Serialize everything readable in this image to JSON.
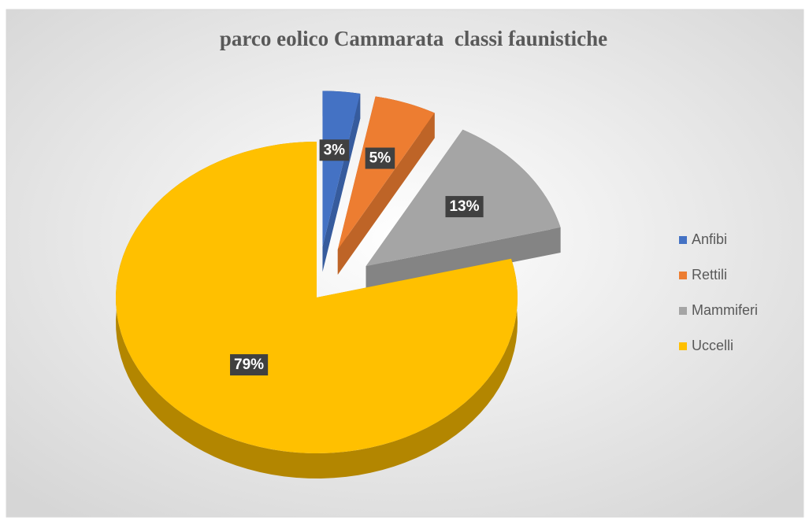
{
  "chart_data": {
    "type": "pie",
    "title": "parco eolico Cammarata  classi faunistiche",
    "categories": [
      "Anfibi",
      "Rettili",
      "Mammiferi",
      "Uccelli"
    ],
    "values": [
      3,
      5,
      13,
      79
    ],
    "value_labels": [
      "3%",
      "5%",
      "13%",
      "79%"
    ],
    "colors": [
      "#4472c4",
      "#ed7d31",
      "#a5a5a5",
      "#ffc000"
    ],
    "legend": "right"
  }
}
